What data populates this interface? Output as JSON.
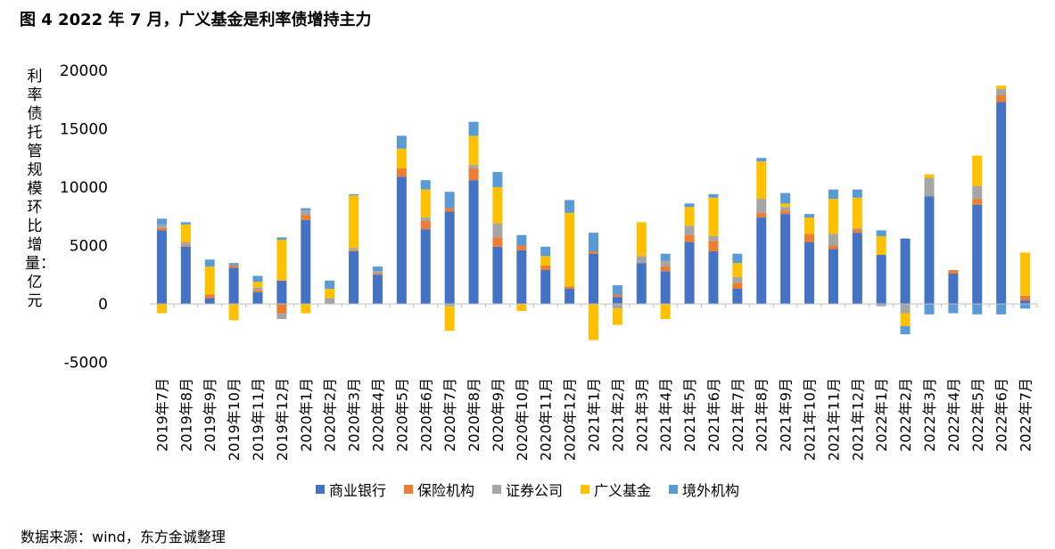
{
  "figure": {
    "title": "图 4  2022 年 7 月，广义基金是利率债增持主力",
    "source": "数据来源：wind，东方金诚整理"
  },
  "chart_data": {
    "type": "bar",
    "stacked": true,
    "title": "",
    "xlabel": "",
    "ylabel": "利率债托管规模环比增量：亿元",
    "ylim": [
      -5000,
      20000
    ],
    "yticks": [
      -5000,
      0,
      5000,
      10000,
      15000,
      20000
    ],
    "grid": false,
    "legend_position": "bottom",
    "categories": [
      "2019年7月",
      "2019年8月",
      "2019年9月",
      "2019年10月",
      "2019年11月",
      "2019年12月",
      "2020年1月",
      "2020年2月",
      "2020年3月",
      "2020年4月",
      "2020年5月",
      "2020年6月",
      "2020年7月",
      "2020年8月",
      "2020年9月",
      "2020年10月",
      "2020年11月",
      "2020年12月",
      "2021年1月",
      "2021年2月",
      "2021年3月",
      "2021年4月",
      "2021年5月",
      "2021年6月",
      "2021年7月",
      "2021年8月",
      "2021年9月",
      "2021年10月",
      "2021年11月",
      "2021年12月",
      "2022年1月",
      "2022年2月",
      "2022年3月",
      "2022年4月",
      "2022年5月",
      "2022年6月",
      "2022年7月"
    ],
    "series": [
      {
        "name": "商业银行",
        "color": "#4472C4",
        "values": [
          6300,
          4900,
          500,
          3100,
          1000,
          2000,
          7200,
          0,
          4500,
          2500,
          10900,
          6400,
          7900,
          10600,
          4900,
          4600,
          2900,
          1300,
          4300,
          600,
          3500,
          2800,
          5300,
          4500,
          1300,
          7400,
          7700,
          5300,
          4700,
          6100,
          4200,
          5600,
          9200,
          2600,
          8500,
          17300,
          300
        ]
      },
      {
        "name": "保险机构",
        "color": "#ED7D31",
        "values": [
          200,
          100,
          300,
          200,
          200,
          -800,
          400,
          0,
          100,
          100,
          700,
          700,
          300,
          1000,
          800,
          400,
          400,
          200,
          200,
          200,
          0,
          400,
          600,
          900,
          500,
          400,
          300,
          700,
          300,
          300,
          0,
          0,
          0,
          300,
          500,
          600,
          400
        ]
      },
      {
        "name": "证券公司",
        "color": "#A5A5A5",
        "values": [
          300,
          300,
          0,
          0,
          200,
          -500,
          400,
          500,
          200,
          200,
          0,
          300,
          -200,
          300,
          1200,
          0,
          0,
          0,
          0,
          -400,
          600,
          500,
          800,
          400,
          500,
          1200,
          300,
          0,
          1000,
          100,
          -200,
          -800,
          1600,
          0,
          1100,
          500,
          0
        ]
      },
      {
        "name": "广义基金",
        "color": "#FFC000",
        "values": [
          -800,
          1500,
          2400,
          -1400,
          500,
          3500,
          -800,
          800,
          4500,
          0,
          1700,
          2400,
          -2100,
          2500,
          3100,
          -600,
          800,
          6300,
          -3100,
          -1400,
          2900,
          -1300,
          1600,
          3300,
          1200,
          3200,
          300,
          1400,
          3000,
          2600,
          1600,
          -1100,
          300,
          0,
          2600,
          300,
          3700
        ]
      },
      {
        "name": "境外机构",
        "color": "#5B9BD5",
        "values": [
          500,
          200,
          600,
          200,
          500,
          200,
          200,
          700,
          100,
          400,
          1100,
          800,
          1400,
          1200,
          1300,
          900,
          800,
          1100,
          1600,
          800,
          0,
          600,
          300,
          300,
          800,
          300,
          900,
          300,
          800,
          700,
          500,
          -700,
          -900,
          -800,
          -900,
          -900,
          -400
        ]
      }
    ]
  }
}
